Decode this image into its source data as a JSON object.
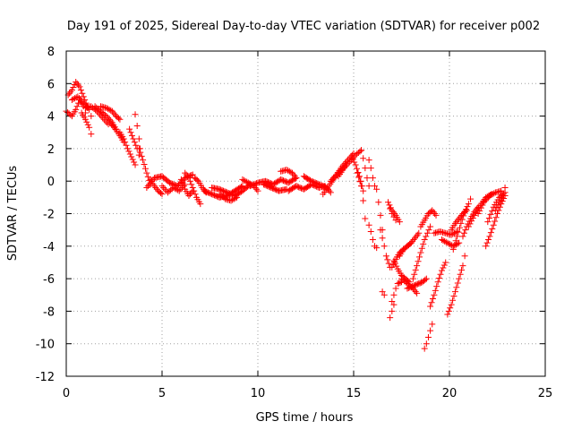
{
  "chart_data": {
    "type": "scatter",
    "title": "Day 191 of 2025, Sidereal Day-to-day VTEC variation (SDTVAR) for receiver p002",
    "xlabel": "GPS time / hours",
    "ylabel": "SDTVAR / TECUs",
    "xlim": [
      0,
      25
    ],
    "ylim": [
      -12,
      8
    ],
    "xticks": [
      0,
      5,
      10,
      15,
      20,
      25
    ],
    "yticks": [
      -12,
      -10,
      -8,
      -6,
      -4,
      -2,
      0,
      2,
      4,
      6,
      8
    ],
    "grid": true,
    "marker": "+",
    "color": "#ff0000",
    "tracks": [
      {
        "name": "track-1",
        "x": [
          0.0,
          0.3,
          0.5,
          0.7,
          0.9,
          1.0
        ],
        "y": [
          4.3,
          4.0,
          4.4,
          5.0,
          4.6,
          4.2
        ]
      },
      {
        "name": "track-2",
        "x": [
          0.1,
          0.3,
          0.5,
          0.7,
          0.9,
          1.1
        ],
        "y": [
          5.3,
          5.6,
          6.1,
          5.8,
          5.2,
          4.6
        ]
      },
      {
        "name": "track-3",
        "x": [
          0.3,
          0.6,
          0.9,
          1.2,
          1.3
        ],
        "y": [
          5.0,
          5.2,
          4.8,
          4.4,
          4.0
        ]
      },
      {
        "name": "track-4",
        "x": [
          0.8,
          1.0,
          1.2,
          1.3
        ],
        "y": [
          4.2,
          3.8,
          3.3,
          2.9
        ]
      },
      {
        "name": "track-5",
        "x": [
          1.0,
          1.3,
          1.6,
          1.9,
          2.2
        ],
        "y": [
          4.5,
          4.6,
          4.3,
          3.9,
          3.5
        ]
      },
      {
        "name": "track-6",
        "x": [
          1.5,
          1.8,
          2.1,
          2.4,
          2.6
        ],
        "y": [
          4.6,
          4.3,
          4.0,
          3.6,
          3.2
        ]
      },
      {
        "name": "track-7",
        "x": [
          1.8,
          2.1,
          2.4,
          2.6,
          2.8
        ],
        "y": [
          4.6,
          4.5,
          4.3,
          4.0,
          3.8
        ]
      },
      {
        "name": "track-8",
        "x": [
          2.2,
          2.5,
          2.8,
          3.0
        ],
        "y": [
          3.7,
          3.3,
          2.8,
          2.4
        ]
      },
      {
        "name": "track-9",
        "x": [
          2.8,
          3.0,
          3.2,
          3.4,
          3.6
        ],
        "y": [
          3.0,
          2.6,
          2.0,
          1.5,
          1.0
        ]
      },
      {
        "name": "track-10",
        "x": [
          3.3,
          3.5,
          3.7,
          3.8
        ],
        "y": [
          3.2,
          2.6,
          2.0,
          1.6
        ]
      },
      {
        "name": "track-11",
        "x": [
          3.6,
          3.7,
          3.8,
          3.85
        ],
        "y": [
          4.1,
          3.4,
          2.6,
          2.0
        ]
      },
      {
        "name": "track-12",
        "x": [
          3.8,
          4.0,
          4.2,
          4.4
        ],
        "y": [
          2.0,
          1.3,
          0.5,
          -0.2
        ]
      },
      {
        "name": "track-13",
        "x": [
          4.2,
          4.6,
          5.0,
          5.4,
          5.8,
          6.2,
          6.6
        ],
        "y": [
          -0.4,
          0.2,
          0.3,
          -0.1,
          -0.3,
          0.2,
          0.4
        ]
      },
      {
        "name": "track-14",
        "x": [
          4.4,
          4.6,
          4.8,
          5.0
        ],
        "y": [
          0.1,
          -0.3,
          -0.6,
          -0.8
        ]
      },
      {
        "name": "track-15",
        "x": [
          5.0,
          5.3,
          5.6,
          5.9,
          6.2
        ],
        "y": [
          -0.3,
          -0.7,
          -0.4,
          -0.6,
          -0.2
        ]
      },
      {
        "name": "track-16",
        "x": [
          6.0,
          6.2,
          6.4,
          6.6
        ],
        "y": [
          0.1,
          -0.5,
          -0.9,
          -0.6
        ]
      },
      {
        "name": "track-17",
        "x": [
          6.2,
          6.4,
          6.6,
          6.8,
          7.0
        ],
        "y": [
          0.5,
          0.2,
          -0.4,
          -1.0,
          -1.4
        ]
      },
      {
        "name": "track-18",
        "x": [
          6.7,
          6.9,
          7.1,
          7.3
        ],
        "y": [
          0.2,
          0.0,
          -0.4,
          -0.7
        ]
      },
      {
        "name": "track-19",
        "x": [
          7.2,
          7.6,
          8.0,
          8.4,
          8.8,
          9.2
        ],
        "y": [
          -0.6,
          -0.8,
          -1.0,
          -0.9,
          -0.6,
          -0.3
        ]
      },
      {
        "name": "track-20",
        "x": [
          7.6,
          8.0,
          8.4,
          8.8,
          9.2,
          9.6
        ],
        "y": [
          -0.4,
          -0.5,
          -0.7,
          -0.9,
          -0.6,
          -0.2
        ]
      },
      {
        "name": "track-21",
        "x": [
          8.0,
          8.3,
          8.6,
          8.9
        ],
        "y": [
          -0.8,
          -1.1,
          -1.2,
          -1.0
        ]
      },
      {
        "name": "track-22",
        "x": [
          9.2,
          9.5,
          9.8,
          10.0
        ],
        "y": [
          0.1,
          -0.1,
          -0.3,
          -0.6
        ]
      },
      {
        "name": "track-23",
        "x": [
          9.6,
          10.0,
          10.4,
          10.8,
          11.2,
          11.6,
          12.0
        ],
        "y": [
          -0.3,
          -0.1,
          0.0,
          -0.2,
          0.1,
          -0.1,
          0.2
        ]
      },
      {
        "name": "track-24",
        "x": [
          10.3,
          10.7,
          11.1,
          11.5
        ],
        "y": [
          -0.2,
          -0.4,
          -0.6,
          -0.5
        ]
      },
      {
        "name": "track-25",
        "x": [
          11.2,
          11.5,
          11.8,
          12.0
        ],
        "y": [
          0.6,
          0.7,
          0.5,
          0.2
        ]
      },
      {
        "name": "track-26",
        "x": [
          11.6,
          12.0,
          12.4,
          12.8,
          13.2,
          13.5
        ],
        "y": [
          -0.6,
          -0.3,
          -0.5,
          -0.2,
          -0.4,
          -0.3
        ]
      },
      {
        "name": "track-27",
        "x": [
          12.4,
          12.8,
          13.2,
          13.6,
          13.8
        ],
        "y": [
          0.3,
          0.0,
          -0.2,
          -0.4,
          -0.7
        ]
      },
      {
        "name": "track-28",
        "x": [
          13.4,
          13.7,
          14.0,
          14.3,
          14.6
        ],
        "y": [
          -0.8,
          -0.3,
          0.2,
          0.6,
          1.0
        ]
      },
      {
        "name": "track-29",
        "x": [
          13.8,
          14.1,
          14.4,
          14.7,
          15.0
        ],
        "y": [
          0.0,
          0.4,
          0.9,
          1.3,
          1.7
        ]
      },
      {
        "name": "track-30",
        "x": [
          14.2,
          14.5,
          14.8,
          15.1,
          15.4
        ],
        "y": [
          0.3,
          0.8,
          1.2,
          1.6,
          1.9
        ]
      },
      {
        "name": "track-31",
        "x": [
          14.9,
          15.1,
          15.3,
          15.5
        ],
        "y": [
          1.5,
          1.0,
          0.3,
          -0.6
        ]
      },
      {
        "name": "track-32",
        "x": [
          15.2,
          15.4,
          15.5,
          15.6
        ],
        "y": [
          0.5,
          -0.3,
          -1.2,
          -2.3
        ]
      },
      {
        "name": "track-33",
        "x": [
          15.4,
          15.5,
          15.6,
          15.7,
          15.8
        ],
        "y": [
          1.9,
          1.4,
          0.8,
          0.2,
          -0.3
        ]
      },
      {
        "name": "track-34",
        "x": [
          15.8,
          15.9,
          16.0,
          16.1
        ],
        "y": [
          1.3,
          0.8,
          0.2,
          -0.3
        ]
      },
      {
        "name": "track-35",
        "x": [
          15.8,
          15.9,
          16.0,
          16.1,
          16.2
        ],
        "y": [
          -2.7,
          -3.1,
          -3.6,
          -4.0,
          -4.1
        ]
      },
      {
        "name": "track-36",
        "x": [
          16.2,
          16.3,
          16.4,
          16.5
        ],
        "y": [
          -0.5,
          -1.3,
          -2.1,
          -3.0
        ]
      },
      {
        "name": "track-37",
        "x": [
          16.4,
          16.5,
          16.6,
          16.7,
          16.9
        ],
        "y": [
          -3.0,
          -3.5,
          -4.0,
          -4.6,
          -5.3
        ]
      },
      {
        "name": "track-38",
        "x": [
          16.5,
          16.6
        ],
        "y": [
          -6.8,
          -7.0
        ]
      },
      {
        "name": "track-39",
        "x": [
          16.8,
          17.0,
          17.2,
          17.4
        ],
        "y": [
          -1.3,
          -1.8,
          -2.1,
          -2.5
        ]
      },
      {
        "name": "track-40",
        "x": [
          16.9,
          17.0,
          17.1,
          17.2
        ],
        "y": [
          -1.7,
          -2.0,
          -2.2,
          -2.4
        ]
      },
      {
        "name": "track-41",
        "x": [
          16.9,
          17.0,
          17.1
        ],
        "y": [
          -8.4,
          -8.0,
          -7.6
        ]
      },
      {
        "name": "track-42",
        "x": [
          17.0,
          17.1,
          17.2,
          17.3,
          17.5
        ],
        "y": [
          -7.4,
          -7.0,
          -6.6,
          -6.3,
          -6.2
        ]
      },
      {
        "name": "track-43",
        "x": [
          17.1,
          17.3,
          17.5,
          17.7,
          17.9
        ],
        "y": [
          -4.9,
          -5.4,
          -5.8,
          -6.0,
          -6.2
        ]
      },
      {
        "name": "track-44",
        "x": [
          17.0,
          17.2,
          17.4,
          17.6,
          17.8,
          18.0
        ],
        "y": [
          -5.3,
          -4.8,
          -4.4,
          -4.2,
          -4.0,
          -3.8
        ]
      },
      {
        "name": "track-45",
        "x": [
          17.4,
          17.6,
          17.8,
          18.0,
          18.2,
          18.4
        ],
        "y": [
          -4.6,
          -4.2,
          -4.0,
          -3.8,
          -3.5,
          -3.2
        ]
      },
      {
        "name": "track-46",
        "x": [
          17.5,
          17.8,
          18.1,
          18.3
        ],
        "y": [
          -6.0,
          -6.3,
          -6.6,
          -6.9
        ]
      },
      {
        "name": "track-47",
        "x": [
          17.8,
          18.0,
          18.2,
          18.4,
          18.6,
          18.8
        ],
        "y": [
          -6.6,
          -6.5,
          -6.4,
          -6.3,
          -6.2,
          -6.0
        ]
      },
      {
        "name": "track-48",
        "x": [
          18.1,
          18.3,
          18.5,
          18.7,
          19.0
        ],
        "y": [
          -6.0,
          -5.2,
          -4.4,
          -3.6,
          -2.8
        ]
      },
      {
        "name": "track-49",
        "x": [
          18.5,
          18.7,
          18.9,
          19.1,
          19.3
        ],
        "y": [
          -2.8,
          -2.4,
          -2.0,
          -1.8,
          -2.1
        ]
      },
      {
        "name": "track-50",
        "x": [
          18.7,
          18.8,
          18.9,
          19.0,
          19.1
        ],
        "y": [
          -10.3,
          -10.0,
          -9.6,
          -9.2,
          -8.8
        ]
      },
      {
        "name": "track-51",
        "x": [
          19.0,
          19.2,
          19.4,
          19.6,
          19.8
        ],
        "y": [
          -7.7,
          -7.0,
          -6.2,
          -5.5,
          -5.0
        ]
      },
      {
        "name": "track-52",
        "x": [
          19.2,
          19.5,
          19.8,
          20.1,
          20.4
        ],
        "y": [
          -3.2,
          -3.1,
          -3.2,
          -3.3,
          -3.1
        ]
      },
      {
        "name": "track-53",
        "x": [
          19.6,
          19.9,
          20.2,
          20.5
        ],
        "y": [
          -3.6,
          -3.8,
          -4.0,
          -3.8
        ]
      },
      {
        "name": "track-54",
        "x": [
          19.9,
          20.1,
          20.3,
          20.5,
          20.7,
          20.8
        ],
        "y": [
          -8.2,
          -7.6,
          -6.8,
          -6.0,
          -5.2,
          -4.6
        ]
      },
      {
        "name": "track-55",
        "x": [
          20.1,
          20.3,
          20.5,
          20.7,
          20.9
        ],
        "y": [
          -3.0,
          -2.6,
          -2.3,
          -2.0,
          -1.8
        ]
      },
      {
        "name": "track-56",
        "x": [
          20.2,
          20.4,
          20.6,
          20.8,
          21.0,
          21.1
        ],
        "y": [
          -4.2,
          -3.4,
          -2.6,
          -1.9,
          -1.4,
          -1.1
        ]
      },
      {
        "name": "track-57",
        "x": [
          20.7,
          20.9,
          21.1,
          21.3,
          21.5
        ],
        "y": [
          -3.4,
          -2.8,
          -2.3,
          -1.9,
          -1.6
        ]
      },
      {
        "name": "track-58",
        "x": [
          21.0,
          21.3,
          21.6,
          21.9,
          22.2
        ],
        "y": [
          -2.8,
          -2.1,
          -1.5,
          -1.0,
          -0.8
        ]
      },
      {
        "name": "track-59",
        "x": [
          21.5,
          21.8,
          22.1,
          22.4,
          22.7
        ],
        "y": [
          -2.0,
          -1.3,
          -0.9,
          -0.7,
          -0.6
        ]
      },
      {
        "name": "track-60",
        "x": [
          21.9,
          22.1,
          22.3,
          22.5,
          22.7,
          22.9
        ],
        "y": [
          -4.0,
          -3.4,
          -2.7,
          -2.0,
          -1.4,
          -0.9
        ]
      },
      {
        "name": "track-61",
        "x": [
          22.0,
          22.3,
          22.6,
          22.9
        ],
        "y": [
          -2.5,
          -1.6,
          -1.0,
          -0.7
        ]
      },
      {
        "name": "track-62",
        "x": [
          22.4,
          22.6,
          22.8,
          22.9
        ],
        "y": [
          -1.8,
          -1.3,
          -0.9,
          -0.4
        ]
      }
    ]
  }
}
